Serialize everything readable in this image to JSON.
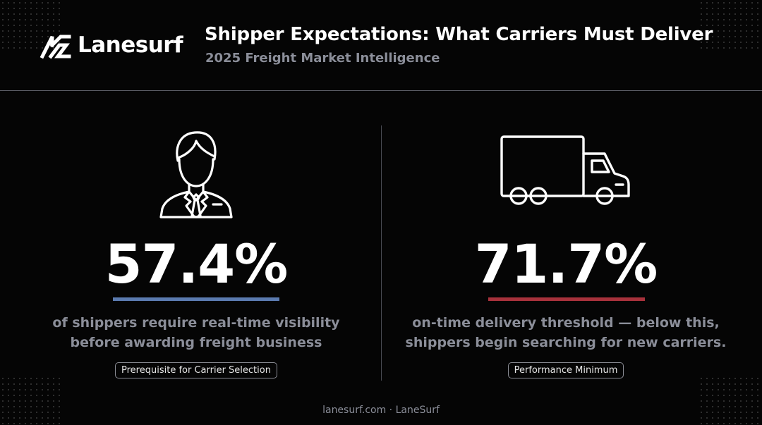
{
  "brand": {
    "name": "Lanesurf"
  },
  "header": {
    "title": "Shipper Expectations: What Carriers Must Deliver",
    "subtitle": "2025 Freight Market Intelligence"
  },
  "stats": [
    {
      "icon": "businessman-icon",
      "value": "57.4%",
      "accent": "#5b7bb0",
      "desc_line1": "of shippers require real-time visibility",
      "desc_line2": "before awarding freight business",
      "badge": "Prerequisite for Carrier Selection"
    },
    {
      "icon": "truck-icon",
      "value": "71.7%",
      "accent": "#a8323c",
      "desc_line1": "on-time delivery threshold — below this,",
      "desc_line2": "shippers begin searching for new carriers.",
      "badge": "Performance Minimum"
    }
  ],
  "footer": {
    "text": "lanesurf.com · LaneSurf"
  }
}
